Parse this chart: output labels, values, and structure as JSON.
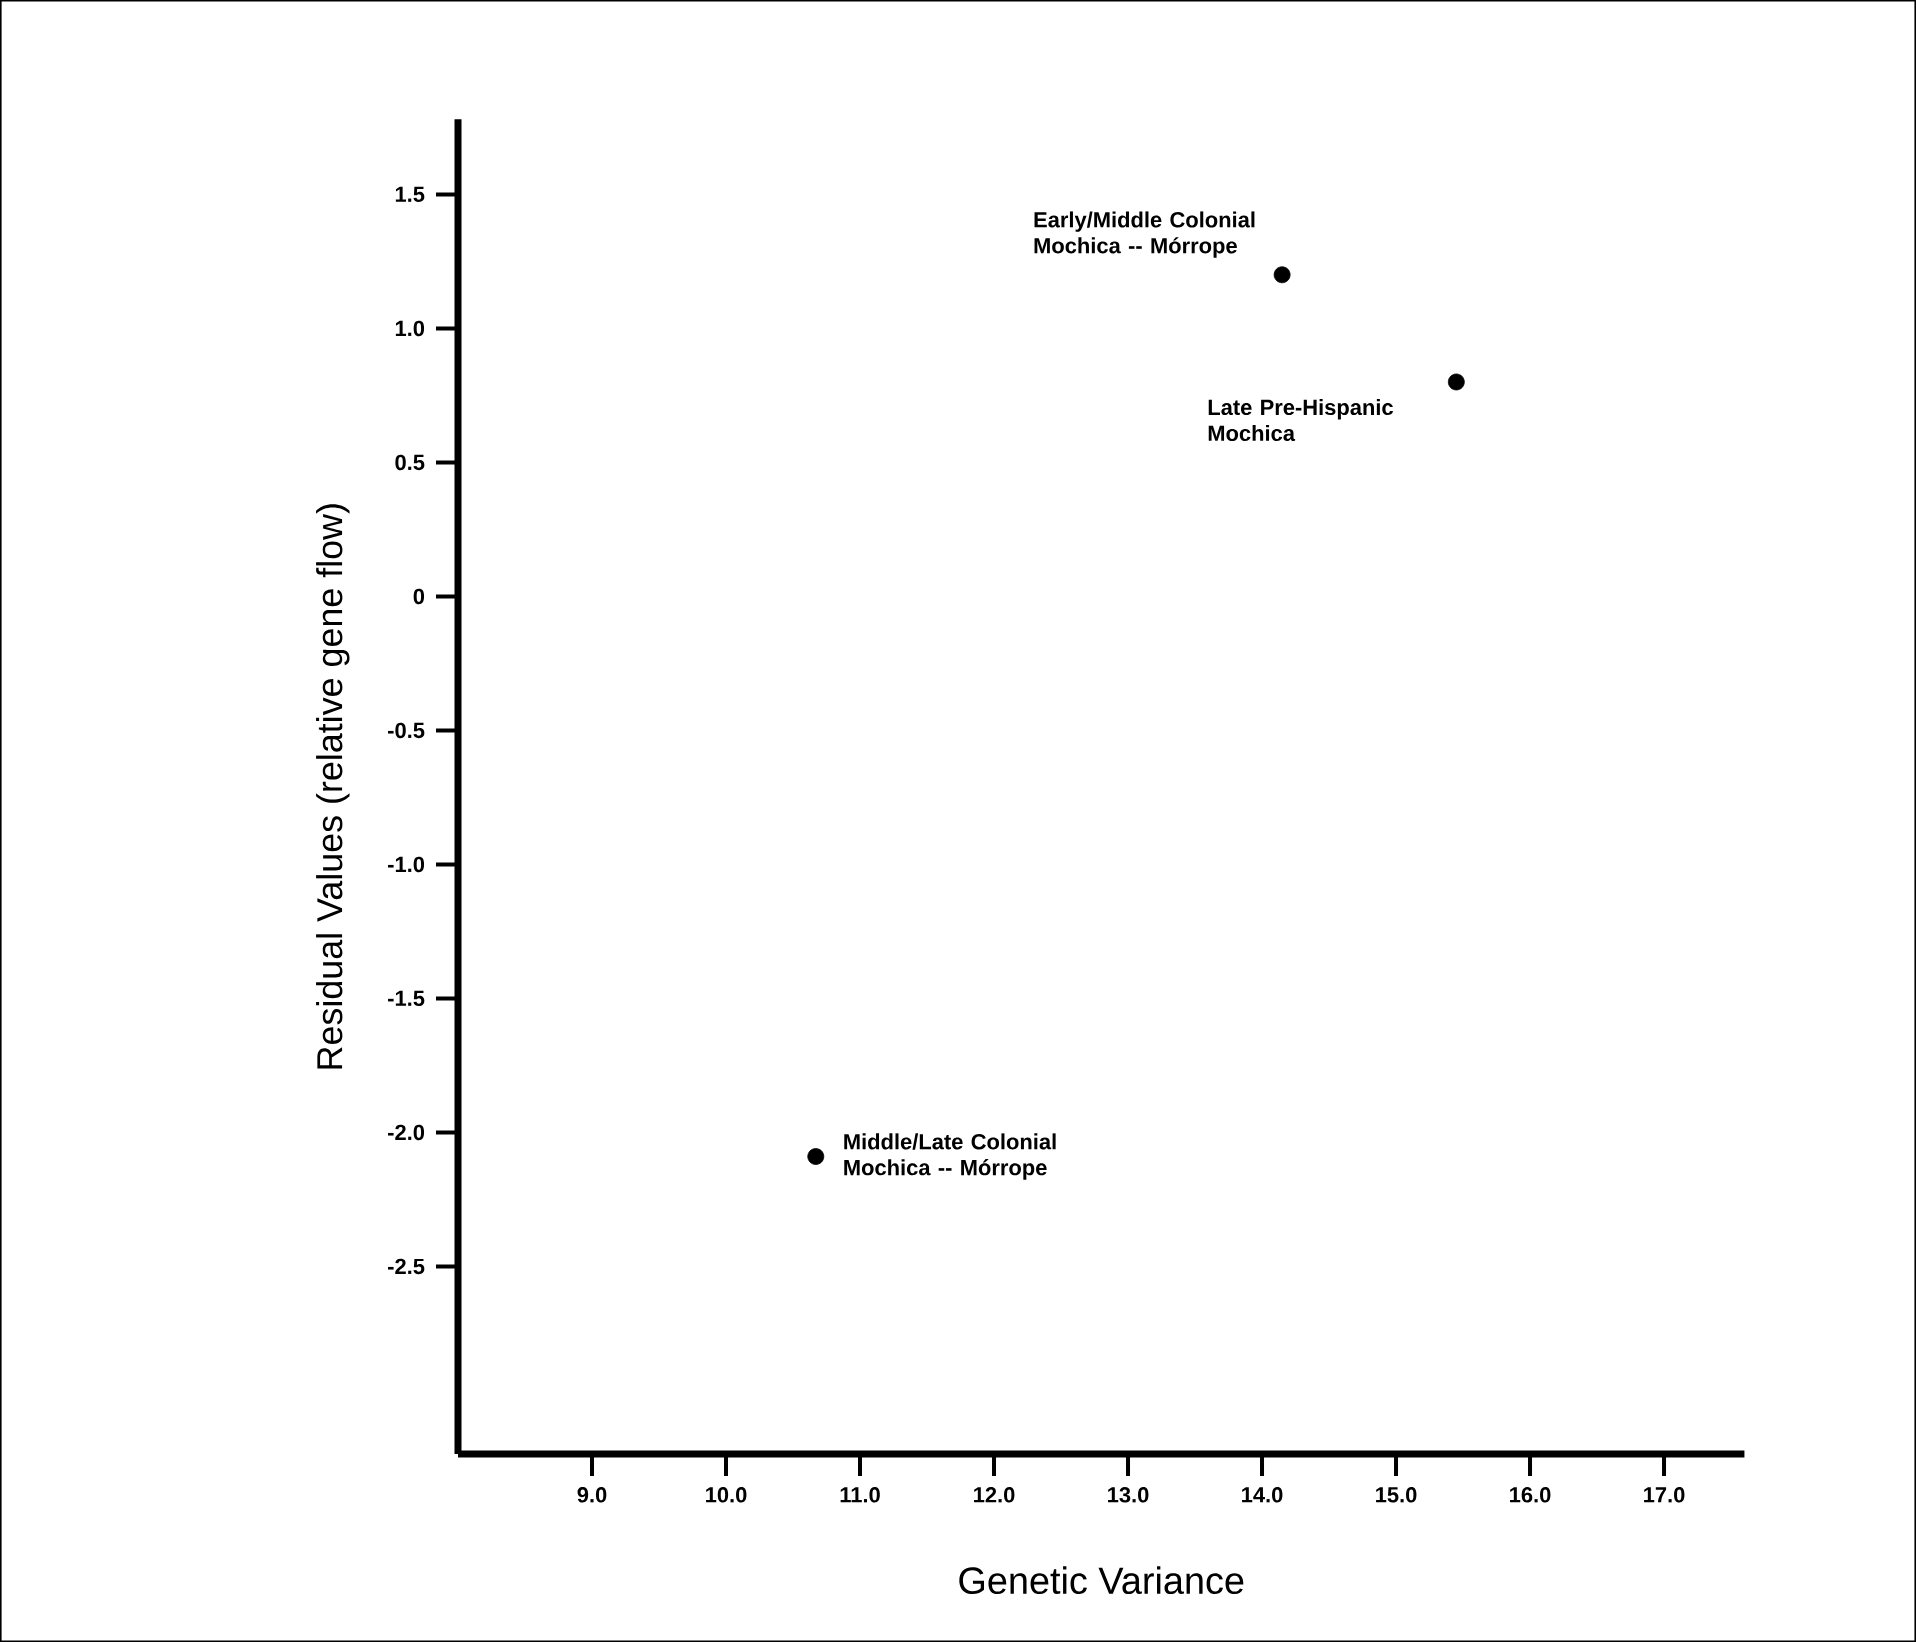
{
  "chart_data": {
    "type": "scatter",
    "xlabel": "Genetic Variance",
    "ylabel": "Residual Values (relative gene flow)",
    "x": [
      14.15,
      15.45,
      10.67
    ],
    "values": [
      1.2,
      0.8,
      -2.09
    ],
    "color": "#000000",
    "marker": "circle",
    "grid": false,
    "xlim": [
      8.0,
      17.6
    ],
    "ylim": [
      -3.2,
      1.78
    ],
    "xticks": [
      {
        "value": 9,
        "label": "9.0"
      },
      {
        "value": 10,
        "label": "10.0"
      },
      {
        "value": 11,
        "label": "11.0"
      },
      {
        "value": 12,
        "label": "12.0"
      },
      {
        "value": 13,
        "label": "13.0"
      },
      {
        "value": 14,
        "label": "14.0"
      },
      {
        "value": 15,
        "label": "15.0"
      },
      {
        "value": 16,
        "label": "16.0"
      },
      {
        "value": 17,
        "label": "17.0"
      }
    ],
    "yticks": [
      {
        "value": 1.5,
        "label": "1.5"
      },
      {
        "value": 1,
        "label": "1.0"
      },
      {
        "value": 0.5,
        "label": "0.5"
      },
      {
        "value": 0,
        "label": "0"
      },
      {
        "value": -0.5,
        "label": "-0.5"
      },
      {
        "value": -1,
        "label": "-1.0"
      },
      {
        "value": -1.5,
        "label": "-1.5"
      },
      {
        "value": -2,
        "label": "-2.0"
      },
      {
        "value": -2.5,
        "label": "-2.5"
      }
    ],
    "annotations": [
      {
        "text": "Early/Middle Colonial Mochica -- Mórrope",
        "x": 14.15,
        "y": 1.2
      },
      {
        "text": "Late Pre-Hispanic Mochica",
        "x": 15.45,
        "y": 0.8
      },
      {
        "text": "Middle/Late Colonial Mochica -- Mórrope",
        "x": 10.67,
        "y": -2.09
      }
    ]
  }
}
